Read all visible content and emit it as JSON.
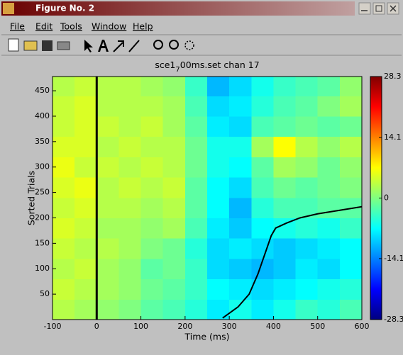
{
  "window": {
    "title": "Figure No. 2"
  },
  "menu": [
    "File",
    "Edit",
    "Tools",
    "Window",
    "Help"
  ],
  "chart_data": {
    "type": "heatmap",
    "title_parts": [
      "sce1",
      "7",
      "00ms.set chan 17"
    ],
    "x_label": "Time (ms)",
    "y_label": "Sorted Trials",
    "xlim": [
      -100,
      600
    ],
    "ylim": [
      0,
      478
    ],
    "xticks": [
      -100,
      0,
      100,
      200,
      300,
      400,
      500,
      600
    ],
    "yticks": [
      50,
      100,
      150,
      200,
      250,
      300,
      350,
      400,
      450
    ],
    "x_edges": [
      -100,
      -50,
      0,
      50,
      100,
      150,
      200,
      250,
      300,
      350,
      400,
      450,
      500,
      550,
      600
    ],
    "y_edges": [
      0,
      40,
      80,
      120,
      160,
      200,
      240,
      280,
      320,
      360,
      400,
      440,
      478
    ],
    "values": [
      [
        3,
        2,
        1,
        0,
        -2,
        -3,
        -5,
        -8,
        -6,
        -8,
        -6,
        -4,
        -5,
        -3
      ],
      [
        4,
        3,
        2,
        1,
        -1,
        -2,
        -4,
        -7,
        -8,
        -9,
        -8,
        -7,
        -6,
        -5
      ],
      [
        3,
        4,
        2,
        1,
        -2,
        -1,
        -4,
        -9,
        -10,
        -11,
        -10,
        -8,
        -9,
        -7
      ],
      [
        4,
        3,
        3,
        2,
        0,
        -1,
        -5,
        -9,
        -8,
        -9,
        -10,
        -9,
        -8,
        -7
      ],
      [
        5,
        4,
        2,
        2,
        1,
        2,
        -3,
        -8,
        -10,
        -7,
        -6,
        -5,
        -6,
        -4
      ],
      [
        4,
        5,
        3,
        3,
        2,
        3,
        -2,
        -7,
        -11,
        -5,
        -3,
        -3,
        -2,
        -2
      ],
      [
        5,
        6,
        3,
        4,
        3,
        4,
        -2,
        -7,
        -9,
        -3,
        -1,
        -2,
        -1,
        0
      ],
      [
        6,
        4,
        4,
        3,
        4,
        3,
        -1,
        -6,
        -7,
        -2,
        2,
        1,
        -1,
        1
      ],
      [
        5,
        5,
        3,
        4,
        3,
        3,
        -1,
        -6,
        -6,
        2,
        7,
        3,
        1,
        3
      ],
      [
        4,
        5,
        4,
        3,
        4,
        2,
        -2,
        -8,
        -9,
        -3,
        -2,
        -1,
        -2,
        -1
      ],
      [
        4,
        5,
        3,
        3,
        3,
        2,
        -3,
        -9,
        -8,
        -5,
        -3,
        -2,
        0,
        2
      ],
      [
        3,
        4,
        3,
        3,
        2,
        1,
        -4,
        -11,
        -9,
        -6,
        -4,
        -3,
        -2,
        1
      ]
    ],
    "colormap": "jet",
    "clim": [
      -28.3,
      28.3
    ],
    "cticks": [
      -28.3,
      -14.1,
      0,
      14.1,
      28.3
    ],
    "onset_x": 0,
    "sort_curve": {
      "x": [
        285,
        320,
        345,
        365,
        375,
        385,
        395,
        405,
        430,
        460,
        500,
        550,
        600
      ],
      "y": [
        3,
        25,
        50,
        90,
        115,
        140,
        165,
        180,
        190,
        200,
        208,
        215,
        222
      ]
    }
  }
}
